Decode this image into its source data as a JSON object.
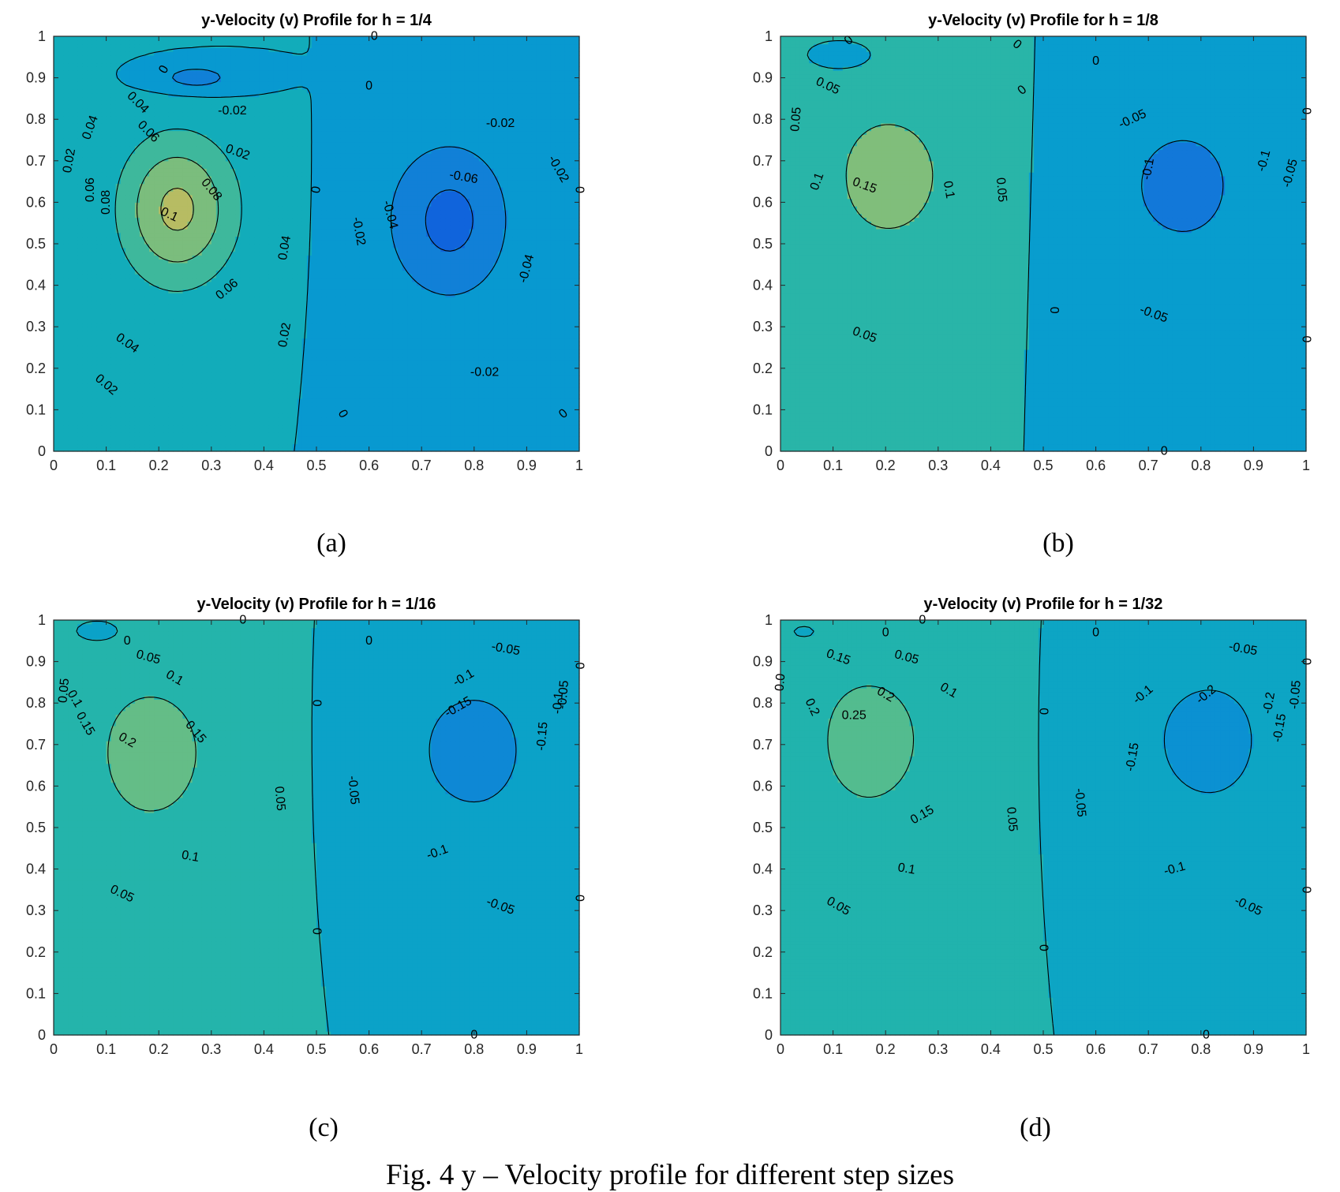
{
  "caption": "Fig. 4 y – Velocity profile for different step sizes",
  "chart_data": [
    {
      "type": "contour",
      "panel_label": "(a)",
      "title": "y-Velocity (v) Profile for h = 1/4",
      "xlabel": "",
      "ylabel": "",
      "xlim": [
        0,
        1
      ],
      "ylim": [
        0,
        1
      ],
      "xticks": [
        "0",
        "0.1",
        "0.2",
        "0.3",
        "0.4",
        "0.5",
        "0.6",
        "0.7",
        "0.8",
        "0.9",
        "1"
      ],
      "yticks": [
        "0",
        "0.1",
        "0.2",
        "0.3",
        "0.4",
        "0.5",
        "0.6",
        "0.7",
        "0.8",
        "0.9",
        "1"
      ],
      "field": {
        "A": 0.105,
        "B": 0.07,
        "x1": 0.21,
        "y1": 0.6,
        "x2": 0.78,
        "y2": 0.57,
        "sx1": 0.12,
        "sy1": 0.2,
        "sx2": 0.13,
        "sy2": 0.22,
        "C": -0.03,
        "x3": 0.27,
        "y3": 0.9,
        "sx3": 0.08,
        "sy3": 0.035
      },
      "levels": [
        -0.06,
        -0.04,
        -0.02,
        0,
        0.02,
        0.04,
        0.06,
        0.08,
        0.1
      ],
      "contour_labels": [
        {
          "text": "0.1",
          "x": 0.22,
          "y": 0.57,
          "angle": 25
        },
        {
          "text": "0.08",
          "x": 0.3,
          "y": 0.63,
          "angle": 50
        },
        {
          "text": "0.08",
          "x": 0.1,
          "y": 0.6,
          "angle": -90
        },
        {
          "text": "0.06",
          "x": 0.07,
          "y": 0.63,
          "angle": -90
        },
        {
          "text": "0.06",
          "x": 0.18,
          "y": 0.77,
          "angle": 45
        },
        {
          "text": "0.06",
          "x": 0.33,
          "y": 0.39,
          "angle": -40
        },
        {
          "text": "0.04",
          "x": 0.16,
          "y": 0.84,
          "angle": 45
        },
        {
          "text": "0.04",
          "x": 0.07,
          "y": 0.78,
          "angle": -70
        },
        {
          "text": "0.04",
          "x": 0.44,
          "y": 0.49,
          "angle": -80
        },
        {
          "text": "0.04",
          "x": 0.14,
          "y": 0.26,
          "angle": 35
        },
        {
          "text": "0.02",
          "x": 0.03,
          "y": 0.7,
          "angle": -80
        },
        {
          "text": "0.02",
          "x": 0.35,
          "y": 0.72,
          "angle": 20
        },
        {
          "text": "0.02",
          "x": 0.44,
          "y": 0.28,
          "angle": -80
        },
        {
          "text": "0.02",
          "x": 0.1,
          "y": 0.16,
          "angle": 40
        },
        {
          "text": "0",
          "x": 0.21,
          "y": 0.92,
          "angle": -60
        },
        {
          "text": "0",
          "x": 0.5,
          "y": 0.63,
          "angle": -80
        },
        {
          "text": "0",
          "x": 0.6,
          "y": 0.88,
          "angle": 0
        },
        {
          "text": "0",
          "x": 0.55,
          "y": 0.09,
          "angle": 60
        },
        {
          "text": "0",
          "x": 0.97,
          "y": 0.09,
          "angle": -40
        },
        {
          "text": "0",
          "x": 1.0,
          "y": 0.63,
          "angle": 90
        },
        {
          "text": "0",
          "x": 0.61,
          "y": 1.0,
          "angle": 0
        },
        {
          "text": "-0.02",
          "x": 0.34,
          "y": 0.82,
          "angle": 0
        },
        {
          "text": "-0.02",
          "x": 0.85,
          "y": 0.79,
          "angle": 0
        },
        {
          "text": "-0.02",
          "x": 0.58,
          "y": 0.53,
          "angle": 80
        },
        {
          "text": "-0.02",
          "x": 0.96,
          "y": 0.68,
          "angle": 60
        },
        {
          "text": "-0.02",
          "x": 0.82,
          "y": 0.19,
          "angle": 0
        },
        {
          "text": "-0.04",
          "x": 0.64,
          "y": 0.57,
          "angle": 75
        },
        {
          "text": "-0.04",
          "x": 0.9,
          "y": 0.44,
          "angle": -75
        },
        {
          "text": "-0.06",
          "x": 0.78,
          "y": 0.66,
          "angle": 10
        }
      ]
    },
    {
      "type": "contour",
      "panel_label": "(b)",
      "title": "y-Velocity (v) Profile for h = 1/8",
      "xlabel": "",
      "ylabel": "",
      "xlim": [
        0,
        1
      ],
      "ylim": [
        0,
        1
      ],
      "xticks": [
        "0",
        "0.1",
        "0.2",
        "0.3",
        "0.4",
        "0.5",
        "0.6",
        "0.7",
        "0.8",
        "0.9",
        "1"
      ],
      "yticks": [
        "0",
        "0.1",
        "0.2",
        "0.3",
        "0.4",
        "0.5",
        "0.6",
        "0.7",
        "0.8",
        "0.9",
        "1"
      ],
      "field": {
        "A": 0.175,
        "B": 0.13,
        "x1": 0.17,
        "y1": 0.7,
        "x2": 0.8,
        "y2": 0.67,
        "sx1": 0.13,
        "sy1": 0.2,
        "sx2": 0.14,
        "sy2": 0.2,
        "C": -0.015,
        "x3": 0.12,
        "y3": 0.95,
        "sx3": 0.05,
        "sy3": 0.03
      },
      "levels": [
        -0.1,
        -0.05,
        0,
        0.05,
        0.1,
        0.15
      ],
      "contour_labels": [
        {
          "text": "0.15",
          "x": 0.16,
          "y": 0.64,
          "angle": 20
        },
        {
          "text": "0.1",
          "x": 0.07,
          "y": 0.65,
          "angle": -70
        },
        {
          "text": "0.1",
          "x": 0.32,
          "y": 0.63,
          "angle": 80
        },
        {
          "text": "0.05",
          "x": 0.03,
          "y": 0.8,
          "angle": -85
        },
        {
          "text": "0.05",
          "x": 0.09,
          "y": 0.88,
          "angle": 25
        },
        {
          "text": "0.05",
          "x": 0.42,
          "y": 0.63,
          "angle": 85
        },
        {
          "text": "0.05",
          "x": 0.16,
          "y": 0.28,
          "angle": 20
        },
        {
          "text": "0",
          "x": 0.13,
          "y": 0.99,
          "angle": -40
        },
        {
          "text": "0",
          "x": 0.45,
          "y": 0.98,
          "angle": 40
        },
        {
          "text": "0",
          "x": 0.6,
          "y": 0.94,
          "angle": 0
        },
        {
          "text": "0",
          "x": 0.46,
          "y": 0.87,
          "angle": -40
        },
        {
          "text": "0",
          "x": 0.52,
          "y": 0.34,
          "angle": 90
        },
        {
          "text": "0",
          "x": 0.73,
          "y": 0.0,
          "angle": 0
        },
        {
          "text": "0",
          "x": 1.0,
          "y": 0.82,
          "angle": 90
        },
        {
          "text": "0",
          "x": 1.0,
          "y": 0.27,
          "angle": 90
        },
        {
          "text": "-0.05",
          "x": 0.67,
          "y": 0.8,
          "angle": -25
        },
        {
          "text": "-0.05",
          "x": 0.97,
          "y": 0.67,
          "angle": -75
        },
        {
          "text": "-0.05",
          "x": 0.71,
          "y": 0.33,
          "angle": 20
        },
        {
          "text": "-0.1",
          "x": 0.7,
          "y": 0.68,
          "angle": -80
        },
        {
          "text": "-0.1",
          "x": 0.92,
          "y": 0.7,
          "angle": -75
        }
      ]
    },
    {
      "type": "contour",
      "panel_label": "(c)",
      "title": "y-Velocity (v) Profile for h = 1/16",
      "xlabel": "",
      "ylabel": "",
      "xlim": [
        0,
        1
      ],
      "ylim": [
        0,
        1
      ],
      "xticks": [
        "0",
        "0.1",
        "0.2",
        "0.3",
        "0.4",
        "0.5",
        "0.6",
        "0.7",
        "0.8",
        "0.9",
        "1"
      ],
      "yticks": [
        "0",
        "0.1",
        "0.2",
        "0.3",
        "0.4",
        "0.5",
        "0.6",
        "0.7",
        "0.8",
        "0.9",
        "1"
      ],
      "field": {
        "A": 0.225,
        "B": 0.2,
        "x1": 0.15,
        "y1": 0.72,
        "x2": 0.83,
        "y2": 0.72,
        "sx1": 0.12,
        "sy1": 0.2,
        "sx2": 0.12,
        "sy2": 0.18,
        "C": -0.012,
        "x3": 0.09,
        "y3": 0.97,
        "sx3": 0.04,
        "sy3": 0.025
      },
      "levels": [
        -0.15,
        -0.1,
        -0.05,
        0,
        0.05,
        0.1,
        0.15,
        0.2
      ],
      "contour_labels": [
        {
          "text": "0.2",
          "x": 0.14,
          "y": 0.71,
          "angle": 30
        },
        {
          "text": "0.15",
          "x": 0.06,
          "y": 0.75,
          "angle": 60
        },
        {
          "text": "0.15",
          "x": 0.27,
          "y": 0.73,
          "angle": 50
        },
        {
          "text": "0.1",
          "x": 0.04,
          "y": 0.81,
          "angle": 60
        },
        {
          "text": "0.1",
          "x": 0.23,
          "y": 0.86,
          "angle": 30
        },
        {
          "text": "0.1",
          "x": 0.26,
          "y": 0.43,
          "angle": 10
        },
        {
          "text": "0.05",
          "x": 0.02,
          "y": 0.83,
          "angle": -85
        },
        {
          "text": "0.05",
          "x": 0.18,
          "y": 0.91,
          "angle": 15
        },
        {
          "text": "0.05",
          "x": 0.43,
          "y": 0.57,
          "angle": 85
        },
        {
          "text": "0.05",
          "x": 0.13,
          "y": 0.34,
          "angle": 25
        },
        {
          "text": "0",
          "x": 0.14,
          "y": 0.95,
          "angle": 0
        },
        {
          "text": "0",
          "x": 0.36,
          "y": 1.0,
          "angle": 0
        },
        {
          "text": "0",
          "x": 0.6,
          "y": 0.95,
          "angle": 0
        },
        {
          "text": "0",
          "x": 0.5,
          "y": 0.8,
          "angle": 90
        },
        {
          "text": "0",
          "x": 0.5,
          "y": 0.25,
          "angle": 90
        },
        {
          "text": "0",
          "x": 0.8,
          "y": 0.0,
          "angle": 0
        },
        {
          "text": "0",
          "x": 1.0,
          "y": 0.89,
          "angle": 90
        },
        {
          "text": "0",
          "x": 1.0,
          "y": 0.33,
          "angle": 90
        },
        {
          "text": "-0.05",
          "x": 0.57,
          "y": 0.59,
          "angle": 85
        },
        {
          "text": "-0.05",
          "x": 0.86,
          "y": 0.93,
          "angle": 10
        },
        {
          "text": "-0.05",
          "x": 0.97,
          "y": 0.82,
          "angle": -85
        },
        {
          "text": "-0.05",
          "x": 0.85,
          "y": 0.31,
          "angle": 20
        },
        {
          "text": "-0.1",
          "x": 0.78,
          "y": 0.86,
          "angle": -30
        },
        {
          "text": "-0.1",
          "x": 0.96,
          "y": 0.8,
          "angle": -85
        },
        {
          "text": "-0.1",
          "x": 0.73,
          "y": 0.44,
          "angle": -20
        },
        {
          "text": "-0.15",
          "x": 0.77,
          "y": 0.79,
          "angle": -30
        },
        {
          "text": "-0.15",
          "x": 0.93,
          "y": 0.72,
          "angle": -85
        }
      ]
    },
    {
      "type": "contour",
      "panel_label": "(d)",
      "title": "y-Velocity (v) Profile for h = 1/32",
      "xlabel": "",
      "ylabel": "",
      "xlim": [
        0,
        1
      ],
      "ylim": [
        0,
        1
      ],
      "xticks": [
        "0",
        "0.1",
        "0.2",
        "0.3",
        "0.4",
        "0.5",
        "0.6",
        "0.7",
        "0.8",
        "0.9",
        "1"
      ],
      "yticks": [
        "0",
        "0.1",
        "0.2",
        "0.3",
        "0.4",
        "0.5",
        "0.6",
        "0.7",
        "0.8",
        "0.9",
        "1"
      ],
      "field": {
        "A": 0.27,
        "B": 0.24,
        "x1": 0.13,
        "y1": 0.76,
        "x2": 0.85,
        "y2": 0.75,
        "sx1": 0.12,
        "sy1": 0.2,
        "sx2": 0.12,
        "sy2": 0.18,
        "C": -0.012,
        "x3": 0.05,
        "y3": 0.97,
        "sx3": 0.03,
        "sy3": 0.02
      },
      "levels": [
        -0.2,
        -0.15,
        -0.1,
        -0.05,
        0,
        0.05,
        0.1,
        0.15,
        0.2,
        0.25
      ],
      "contour_labels": [
        {
          "text": "0.25",
          "x": 0.14,
          "y": 0.77,
          "angle": 0
        },
        {
          "text": "0.2",
          "x": 0.2,
          "y": 0.82,
          "angle": 30
        },
        {
          "text": "0.2",
          "x": 0.06,
          "y": 0.79,
          "angle": 65
        },
        {
          "text": "0.15",
          "x": 0.11,
          "y": 0.91,
          "angle": 20
        },
        {
          "text": "0.15",
          "x": 0.27,
          "y": 0.53,
          "angle": -30
        },
        {
          "text": "0.1",
          "x": 0.32,
          "y": 0.83,
          "angle": 30
        },
        {
          "text": "0.1",
          "x": 0.24,
          "y": 0.4,
          "angle": 10
        },
        {
          "text": "0.05",
          "x": 0.24,
          "y": 0.91,
          "angle": 15
        },
        {
          "text": "0.05",
          "x": 0.44,
          "y": 0.52,
          "angle": 85
        },
        {
          "text": "0.05",
          "x": 0.11,
          "y": 0.31,
          "angle": 30
        },
        {
          "text": "0.0",
          "x": 0.0,
          "y": 0.85,
          "angle": -85
        },
        {
          "text": "0",
          "x": 0.2,
          "y": 0.97,
          "angle": 0
        },
        {
          "text": "0",
          "x": 0.27,
          "y": 1.0,
          "angle": 0
        },
        {
          "text": "0",
          "x": 0.6,
          "y": 0.97,
          "angle": 0
        },
        {
          "text": "0",
          "x": 0.5,
          "y": 0.78,
          "angle": 90
        },
        {
          "text": "0",
          "x": 0.5,
          "y": 0.21,
          "angle": 90
        },
        {
          "text": "0",
          "x": 0.81,
          "y": 0.0,
          "angle": 0
        },
        {
          "text": "0",
          "x": 1.0,
          "y": 0.9,
          "angle": 90
        },
        {
          "text": "0",
          "x": 1.0,
          "y": 0.35,
          "angle": 90
        },
        {
          "text": "-0.05",
          "x": 0.57,
          "y": 0.56,
          "angle": 85
        },
        {
          "text": "-0.05",
          "x": 0.88,
          "y": 0.93,
          "angle": 10
        },
        {
          "text": "-0.05",
          "x": 0.98,
          "y": 0.82,
          "angle": -85
        },
        {
          "text": "-0.05",
          "x": 0.89,
          "y": 0.31,
          "angle": 25
        },
        {
          "text": "-0.1",
          "x": 0.69,
          "y": 0.82,
          "angle": -40
        },
        {
          "text": "-0.1",
          "x": 0.75,
          "y": 0.4,
          "angle": -15
        },
        {
          "text": "-0.15",
          "x": 0.67,
          "y": 0.67,
          "angle": -80
        },
        {
          "text": "-0.15",
          "x": 0.95,
          "y": 0.74,
          "angle": -80
        },
        {
          "text": "-0.2",
          "x": 0.81,
          "y": 0.82,
          "angle": -40
        },
        {
          "text": "-0.2",
          "x": 0.93,
          "y": 0.8,
          "angle": -80
        }
      ]
    }
  ]
}
